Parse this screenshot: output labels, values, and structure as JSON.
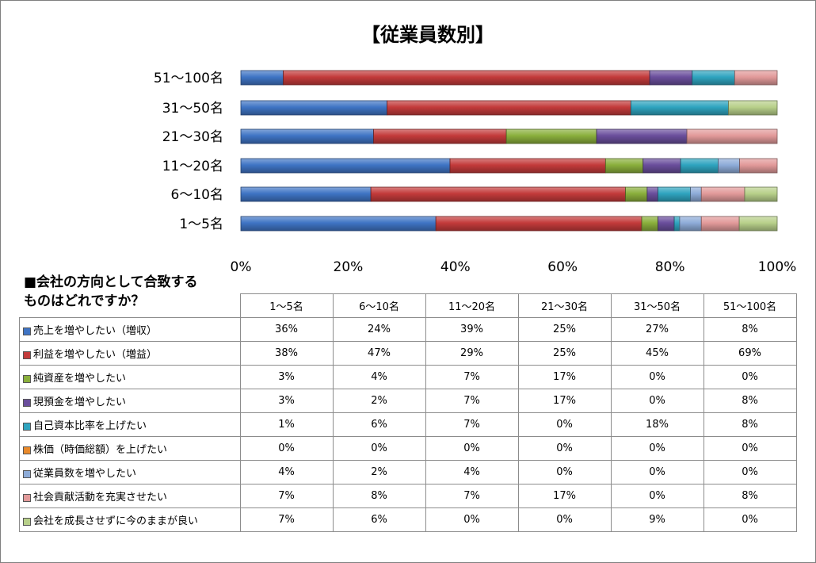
{
  "colors": {
    "blue": "#3f74c4",
    "red": "#c33b3b",
    "green": "#8aaf3c",
    "purple": "#6a4e9c",
    "teal": "#2fa4bf",
    "orange": "#e98a2c",
    "lightblue": "#8eacd8",
    "pink": "#e29a9a",
    "lightgreen": "#b8d08a"
  },
  "question": [
    "■会社の方向として合致する",
    "ものはどれですか？"
  ],
  "chart_data": {
    "type": "bar",
    "orientation": "horizontal",
    "stacked": true,
    "title": "【従業員数別】",
    "categories": [
      "1～5名",
      "6～10名",
      "11～20名",
      "21～30名",
      "31～50名",
      "51～100名"
    ],
    "x_ticks": [
      "0%",
      "20%",
      "40%",
      "60%",
      "80%",
      "100%"
    ],
    "xlim": [
      0,
      100
    ],
    "series": [
      {
        "name": "売上を増やしたい（増収）",
        "color": "blue",
        "values": [
          36,
          24,
          39,
          25,
          27,
          8
        ]
      },
      {
        "name": "利益を増やしたい（増益）",
        "color": "red",
        "values": [
          38,
          47,
          29,
          25,
          45,
          69
        ]
      },
      {
        "name": "純資産を増やしたい",
        "color": "green",
        "values": [
          3,
          4,
          7,
          17,
          0,
          0
        ]
      },
      {
        "name": "現預金を増やしたい",
        "color": "purple",
        "values": [
          3,
          2,
          7,
          17,
          0,
          8
        ]
      },
      {
        "name": "自己資本比率を上げたい",
        "color": "teal",
        "values": [
          1,
          6,
          7,
          0,
          18,
          8
        ]
      },
      {
        "name": "株価（時価総額）を上げたい",
        "color": "orange",
        "values": [
          0,
          0,
          0,
          0,
          0,
          0
        ]
      },
      {
        "name": "従業員数を増やしたい",
        "color": "lightblue",
        "values": [
          4,
          2,
          4,
          0,
          0,
          0
        ]
      },
      {
        "name": "社会貢献活動を充実させたい",
        "color": "pink",
        "values": [
          7,
          8,
          7,
          17,
          0,
          8
        ]
      },
      {
        "name": "会社を成長させずに今のままが良い",
        "color": "lightgreen",
        "values": [
          7,
          6,
          0,
          0,
          9,
          0
        ]
      }
    ]
  }
}
